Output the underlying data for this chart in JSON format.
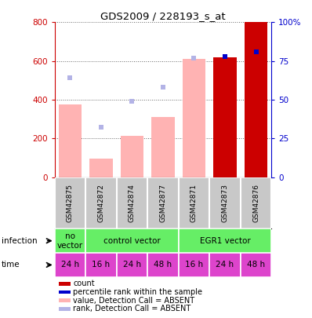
{
  "title": "GDS2009 / 228193_s_at",
  "samples": [
    "GSM42875",
    "GSM42872",
    "GSM42874",
    "GSM42877",
    "GSM42871",
    "GSM42873",
    "GSM42876"
  ],
  "bar_values": [
    375,
    95,
    215,
    310,
    610,
    620,
    800
  ],
  "bar_colors": [
    "#ffb3b3",
    "#ffb3b3",
    "#ffb3b3",
    "#ffb3b3",
    "#ffb3b3",
    "#cc0000",
    "#cc0000"
  ],
  "rank_percent": [
    64,
    32,
    49,
    58,
    77,
    78,
    81
  ],
  "rank_colors": [
    "#b3b3e6",
    "#b3b3e6",
    "#b3b3e6",
    "#b3b3e6",
    "#b3b3e6",
    "#0000cc",
    "#0000cc"
  ],
  "ylim_left": [
    0,
    800
  ],
  "ylim_right": [
    0,
    100
  ],
  "yticks_left": [
    0,
    200,
    400,
    600,
    800
  ],
  "yticks_right": [
    0,
    25,
    50,
    75,
    100
  ],
  "yticklabels_right": [
    "0",
    "25",
    "50",
    "75",
    "100%"
  ],
  "infection_groups": [
    {
      "label": "no\nvector",
      "start": 0,
      "end": 1
    },
    {
      "label": "control vector",
      "start": 1,
      "end": 4
    },
    {
      "label": "EGR1 vector",
      "start": 4,
      "end": 7
    }
  ],
  "time_labels": [
    "24 h",
    "16 h",
    "24 h",
    "48 h",
    "16 h",
    "24 h",
    "48 h"
  ],
  "time_color": "#dd44cc",
  "infection_color": "#66ee66",
  "sample_row_color": "#c8c8c8",
  "left_axis_color": "#cc0000",
  "right_axis_color": "#0000cc",
  "legend_items": [
    {
      "color": "#cc0000",
      "label": "count"
    },
    {
      "color": "#0000cc",
      "label": "percentile rank within the sample"
    },
    {
      "color": "#ffb3b3",
      "label": "value, Detection Call = ABSENT"
    },
    {
      "color": "#b3b3e6",
      "label": "rank, Detection Call = ABSENT"
    }
  ]
}
